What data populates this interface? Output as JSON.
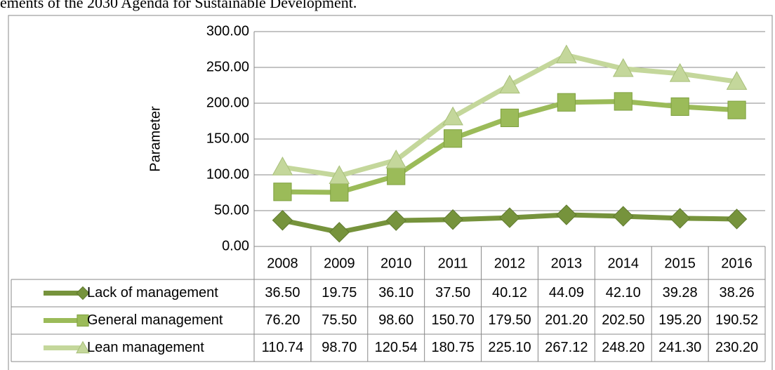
{
  "caption": "ements of the 2030 Agenda for Sustainable Development.",
  "chart_data": {
    "type": "line",
    "ylabel": "Parameter",
    "categories": [
      "2008",
      "2009",
      "2010",
      "2011",
      "2012",
      "2013",
      "2014",
      "2015",
      "2016"
    ],
    "ylim": [
      0,
      300
    ],
    "yticks": [
      {
        "value": 0,
        "label": "0.00"
      },
      {
        "value": 50,
        "label": "50.00"
      },
      {
        "value": 100,
        "label": "100.00"
      },
      {
        "value": 150,
        "label": "150.00"
      },
      {
        "value": 200,
        "label": "200.00"
      },
      {
        "value": 250,
        "label": "250.00"
      },
      {
        "value": 300,
        "label": "300.00"
      }
    ],
    "grid": true,
    "series": [
      {
        "name": "Lack of management",
        "color": "#76933c",
        "marker": "diamond",
        "values": [
          36.5,
          19.75,
          36.1,
          37.5,
          40.12,
          44.09,
          42.1,
          39.28,
          38.26
        ],
        "value_labels": [
          "36.50",
          "19.75",
          "36.10",
          "37.50",
          "40.12",
          "44.09",
          "42.10",
          "39.28",
          "38.26"
        ]
      },
      {
        "name": "General management",
        "color": "#9bbb59",
        "marker": "square",
        "values": [
          76.2,
          75.5,
          98.6,
          150.7,
          179.5,
          201.2,
          202.5,
          195.2,
          190.52
        ],
        "value_labels": [
          "76.20",
          "75.50",
          "98.60",
          "150.70",
          "179.50",
          "201.20",
          "202.50",
          "195.20",
          "190.52"
        ]
      },
      {
        "name": "Lean management",
        "color": "#c4d79b",
        "marker": "triangle",
        "values": [
          110.74,
          98.7,
          120.54,
          180.75,
          225.1,
          267.12,
          248.2,
          241.3,
          230.2
        ],
        "value_labels": [
          "110.74",
          "98.70",
          "120.54",
          "180.75",
          "225.10",
          "267.12",
          "248.20",
          "241.30",
          "230.20"
        ]
      }
    ]
  }
}
